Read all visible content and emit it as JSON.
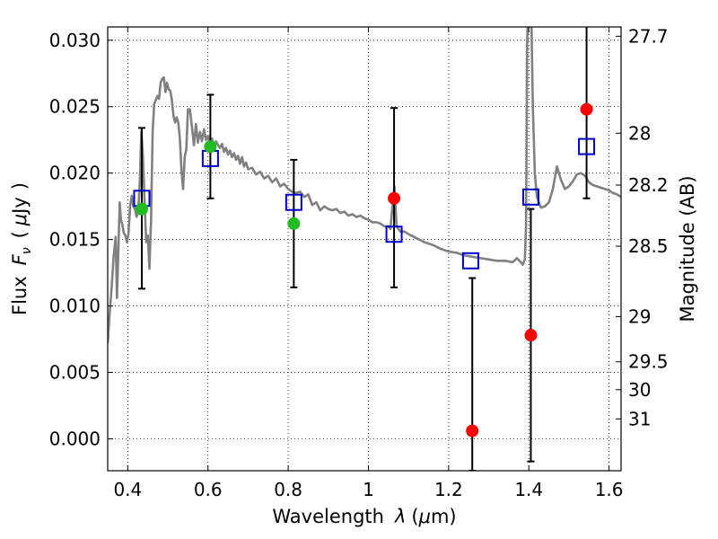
{
  "chart_data": {
    "type": "scatter",
    "title": "",
    "xlabel_parts": [
      "Wavelength",
      "λ",
      "(",
      "μ",
      "m)"
    ],
    "ylabel_parts": [
      "Flux",
      "F",
      "ν",
      "(",
      "μ",
      "Jy",
      ")"
    ],
    "y2label": "Magnitude (AB)",
    "xlim": [
      0.35,
      1.63
    ],
    "ylim": [
      -0.0024,
      0.031
    ],
    "grid": true,
    "x_ticks": [
      {
        "value": 0.4,
        "label": "0.4"
      },
      {
        "value": 0.6,
        "label": "0.6"
      },
      {
        "value": 0.8,
        "label": "0.8"
      },
      {
        "value": 1.0,
        "label": "1"
      },
      {
        "value": 1.2,
        "label": "1.2"
      },
      {
        "value": 1.4,
        "label": "1.4"
      },
      {
        "value": 1.6,
        "label": "1.6"
      }
    ],
    "y_ticks": [
      {
        "value": 0.0,
        "label": "0.000"
      },
      {
        "value": 0.005,
        "label": "0.005"
      },
      {
        "value": 0.01,
        "label": "0.010"
      },
      {
        "value": 0.015,
        "label": "0.015"
      },
      {
        "value": 0.02,
        "label": "0.020"
      },
      {
        "value": 0.025,
        "label": "0.025"
      },
      {
        "value": 0.03,
        "label": "0.030"
      }
    ],
    "y2_ticks": [
      {
        "label": "27.7",
        "flux": 0.0303
      },
      {
        "label": "28",
        "flux": 0.023
      },
      {
        "label": "28.2",
        "flux": 0.0191
      },
      {
        "label": "28.5",
        "flux": 0.0145
      },
      {
        "label": "29",
        "flux": 0.0092
      },
      {
        "label": "29.5",
        "flux": 0.0058
      },
      {
        "label": "30",
        "flux": 0.0037
      },
      {
        "label": "31",
        "flux": 0.0015
      }
    ],
    "model_spectrum": {
      "color": "#808080",
      "x": [
        0.35,
        0.355,
        0.36,
        0.365,
        0.37,
        0.373,
        0.376,
        0.38,
        0.383,
        0.386,
        0.39,
        0.394,
        0.398,
        0.402,
        0.406,
        0.41,
        0.414,
        0.418,
        0.422,
        0.426,
        0.43,
        0.434,
        0.438,
        0.442,
        0.446,
        0.45,
        0.454,
        0.458,
        0.462,
        0.466,
        0.47,
        0.474,
        0.478,
        0.482,
        0.486,
        0.49,
        0.494,
        0.498,
        0.502,
        0.506,
        0.51,
        0.514,
        0.518,
        0.522,
        0.526,
        0.53,
        0.534,
        0.538,
        0.542,
        0.546,
        0.55,
        0.555,
        0.56,
        0.565,
        0.57,
        0.575,
        0.58,
        0.585,
        0.59,
        0.595,
        0.6,
        0.605,
        0.61,
        0.615,
        0.62,
        0.625,
        0.63,
        0.635,
        0.64,
        0.645,
        0.65,
        0.655,
        0.66,
        0.665,
        0.67,
        0.675,
        0.68,
        0.685,
        0.69,
        0.695,
        0.7,
        0.71,
        0.72,
        0.73,
        0.74,
        0.75,
        0.76,
        0.77,
        0.78,
        0.79,
        0.8,
        0.81,
        0.82,
        0.83,
        0.84,
        0.85,
        0.86,
        0.87,
        0.88,
        0.89,
        0.9,
        0.91,
        0.92,
        0.93,
        0.94,
        0.95,
        0.96,
        0.97,
        0.98,
        0.99,
        1.0,
        1.01,
        1.02,
        1.03,
        1.04,
        1.05,
        1.055,
        1.06,
        1.065,
        1.07,
        1.075,
        1.08,
        1.09,
        1.1,
        1.12,
        1.14,
        1.16,
        1.18,
        1.2,
        1.22,
        1.24,
        1.26,
        1.28,
        1.3,
        1.32,
        1.34,
        1.36,
        1.37,
        1.38,
        1.385,
        1.39,
        1.393,
        1.396,
        1.4,
        1.405,
        1.41,
        1.415,
        1.42,
        1.425,
        1.43,
        1.44,
        1.45,
        1.46,
        1.47,
        1.48,
        1.49,
        1.5,
        1.51,
        1.52,
        1.53,
        1.54,
        1.55,
        1.56,
        1.57,
        1.58,
        1.59,
        1.6,
        1.61,
        1.62,
        1.63
      ],
      "y": [
        0.0072,
        0.0095,
        0.0115,
        0.0138,
        0.0152,
        0.0106,
        0.0135,
        0.0178,
        0.0165,
        0.0162,
        0.0155,
        0.0153,
        0.0148,
        0.0155,
        0.0175,
        0.0183,
        0.0175,
        0.0173,
        0.0167,
        0.0171,
        0.0193,
        0.0232,
        0.0212,
        0.0178,
        0.0148,
        0.0153,
        0.0128,
        0.0165,
        0.0232,
        0.0252,
        0.0255,
        0.0258,
        0.0256,
        0.0268,
        0.0271,
        0.0272,
        0.0261,
        0.0268,
        0.0263,
        0.0262,
        0.0255,
        0.0243,
        0.0238,
        0.0242,
        0.0238,
        0.0226,
        0.0202,
        0.0188,
        0.0212,
        0.0218,
        0.0248,
        0.0248,
        0.0235,
        0.0221,
        0.0237,
        0.0223,
        0.0231,
        0.0224,
        0.0233,
        0.0225,
        0.0228,
        0.0221,
        0.0226,
        0.0218,
        0.0224,
        0.0221,
        0.0219,
        0.0222,
        0.0216,
        0.0219,
        0.0214,
        0.0217,
        0.0212,
        0.0215,
        0.021,
        0.0213,
        0.0207,
        0.0212,
        0.0205,
        0.0208,
        0.0203,
        0.0204,
        0.0199,
        0.0201,
        0.0196,
        0.0198,
        0.0193,
        0.0196,
        0.019,
        0.0192,
        0.0188,
        0.0186,
        0.0185,
        0.0186,
        0.0182,
        0.0184,
        0.0176,
        0.0178,
        0.0172,
        0.0175,
        0.0173,
        0.0172,
        0.0173,
        0.017,
        0.0171,
        0.0168,
        0.0169,
        0.0167,
        0.0168,
        0.0166,
        0.0165,
        0.0163,
        0.0163,
        0.0162,
        0.016,
        0.016,
        0.0158,
        0.0175,
        0.019,
        0.016,
        0.0158,
        0.0156,
        0.0156,
        0.0154,
        0.0151,
        0.0148,
        0.0146,
        0.0143,
        0.0141,
        0.014,
        0.0138,
        0.0137,
        0.0136,
        0.0135,
        0.0134,
        0.0134,
        0.0133,
        0.0136,
        0.0133,
        0.0131,
        0.0135,
        0.016,
        0.03,
        0.034,
        0.034,
        0.025,
        0.02,
        0.0182,
        0.0178,
        0.0174,
        0.0175,
        0.0178,
        0.0188,
        0.0205,
        0.0195,
        0.0188,
        0.019,
        0.0194,
        0.0199,
        0.02,
        0.0198,
        0.0193,
        0.0191,
        0.019,
        0.0189,
        0.0188,
        0.0187,
        0.0185,
        0.0184,
        0.0182
      ]
    },
    "model_photometry": {
      "marker": "open-square",
      "color": "#0000cc",
      "points": [
        {
          "x": 0.435,
          "y": 0.0181
        },
        {
          "x": 0.606,
          "y": 0.0211
        },
        {
          "x": 0.814,
          "y": 0.0178
        },
        {
          "x": 1.064,
          "y": 0.0154
        },
        {
          "x": 1.255,
          "y": 0.0134
        },
        {
          "x": 1.405,
          "y": 0.0182
        },
        {
          "x": 1.544,
          "y": 0.022
        }
      ]
    },
    "detections": {
      "marker": "filled-circle",
      "color": "#22bb22",
      "points": [
        {
          "x": 0.435,
          "y": 0.0173,
          "err_low": 0.0113,
          "err_high": 0.0234
        },
        {
          "x": 0.606,
          "y": 0.022,
          "err_low": 0.0181,
          "err_high": 0.0259
        },
        {
          "x": 0.814,
          "y": 0.0162,
          "err_low": 0.0114,
          "err_high": 0.021
        }
      ]
    },
    "nondetections": {
      "marker": "filled-circle",
      "color": "#ff0000",
      "points": [
        {
          "x": 1.064,
          "y": 0.0181,
          "err_low": 0.0114,
          "err_high": 0.0249
        },
        {
          "x": 1.259,
          "y": 0.0006,
          "err_low": -0.0024,
          "err_high": 0.0121
        },
        {
          "x": 1.405,
          "y": 0.0078,
          "err_low": -0.0017,
          "err_high": 0.0173
        },
        {
          "x": 1.544,
          "y": 0.0248,
          "err_low": 0.0181,
          "err_high": 0.0315
        }
      ]
    }
  }
}
